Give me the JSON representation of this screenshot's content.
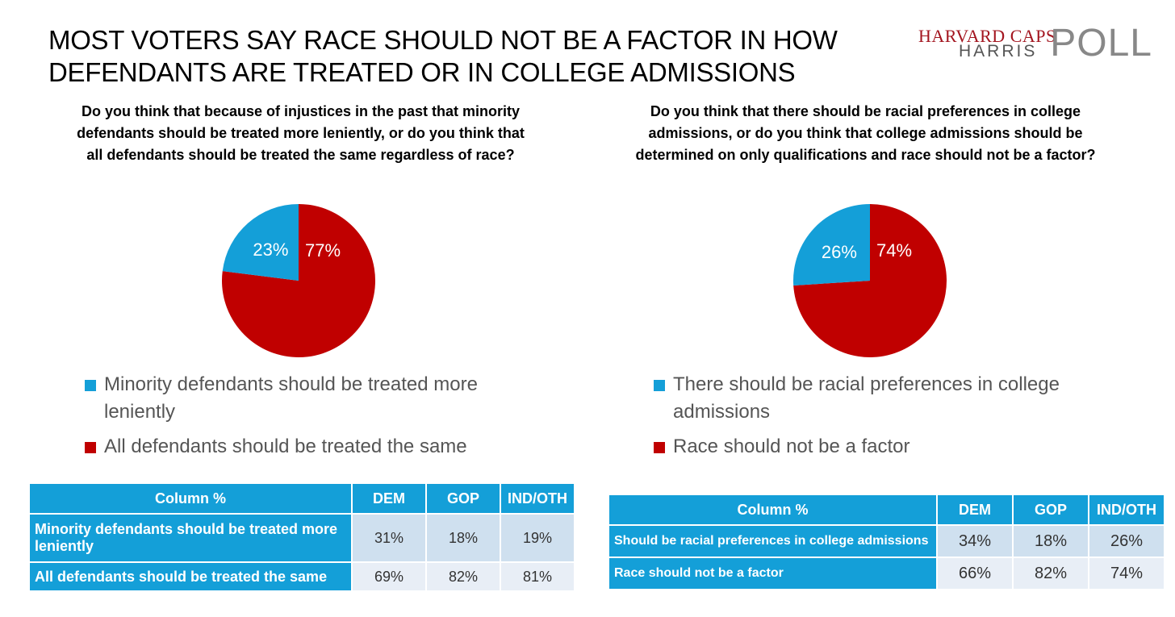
{
  "title": "MOST VOTERS SAY RACE SHOULD NOT BE A FACTOR IN HOW DEFENDANTS ARE TREATED OR IN COLLEGE ADMISSIONS",
  "logo": {
    "top": "HARVARD CAPS",
    "bottom": "HARRIS",
    "poll": "POLL"
  },
  "colors": {
    "blue": "#149fd8",
    "red": "#c00000"
  },
  "chart_data": [
    {
      "type": "pie",
      "title": "Do you think that because of injustices in the past that minority defendants should be treated more leniently, or do you think that all defendants should be treated the same regardless of race?",
      "slices": [
        {
          "name": "Minority defendants should be treated more leniently",
          "value": 23,
          "label": "23%",
          "color": "#149fd8"
        },
        {
          "name": "All defendants should be treated the same",
          "value": 77,
          "label": "77%",
          "color": "#c00000"
        }
      ],
      "legend": "bottom"
    },
    {
      "type": "pie",
      "title": "Do you think that there should be racial preferences in college admissions, or do you think that college admissions should be determined on only qualifications and race should not be a factor?",
      "slices": [
        {
          "name": "There should be racial preferences in college admissions",
          "value": 26,
          "label": "26%",
          "color": "#149fd8"
        },
        {
          "name": "Race should not be a factor",
          "value": 74,
          "label": "74%",
          "color": "#c00000"
        }
      ],
      "legend": "bottom"
    },
    {
      "type": "table",
      "columns": [
        "Column %",
        "DEM",
        "GOP",
        "IND/OTH"
      ],
      "rows": [
        {
          "label": "Minority defendants should be treated more leniently",
          "values": [
            "31%",
            "18%",
            "19%"
          ]
        },
        {
          "label": "All defendants should be treated the same",
          "values": [
            "69%",
            "82%",
            "81%"
          ]
        }
      ]
    },
    {
      "type": "table",
      "columns": [
        "Column %",
        "DEM",
        "GOP",
        "IND/OTH"
      ],
      "rows": [
        {
          "label": "Should be racial preferences in college admissions",
          "values": [
            "34%",
            "18%",
            "26%"
          ]
        },
        {
          "label": "Race should not be a factor",
          "values": [
            "66%",
            "82%",
            "74%"
          ]
        }
      ]
    }
  ]
}
